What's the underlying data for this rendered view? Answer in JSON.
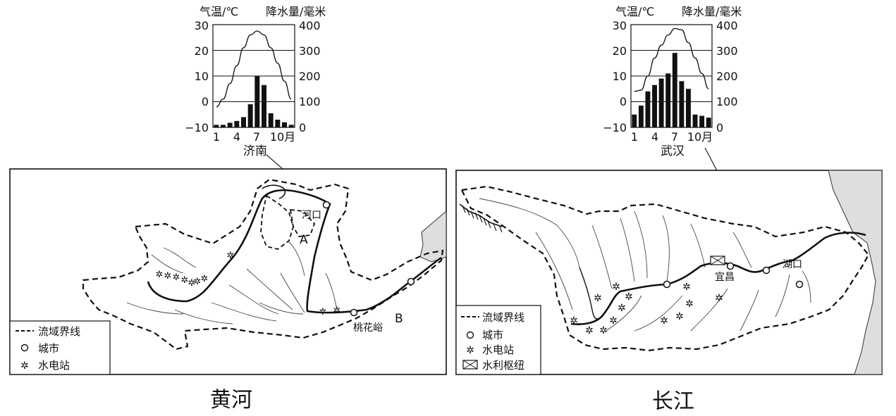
{
  "charts": [
    {
      "city": "济南",
      "temp_label": "气温/℃",
      "precip_label": "降水量/毫米",
      "temp_ticks": [
        "30",
        "20",
        "10",
        "0",
        "−10"
      ],
      "precip_ticks": [
        "400",
        "300",
        "200",
        "100",
        "0"
      ],
      "x_ticks": [
        "1",
        "4",
        "7",
        "10月"
      ]
    },
    {
      "city": "武汉",
      "temp_label": "气温/℃",
      "precip_label": "降水量/毫米",
      "temp_ticks": [
        "30",
        "20",
        "10",
        "0",
        "−10"
      ],
      "precip_ticks": [
        "400",
        "300",
        "200",
        "100",
        "0"
      ],
      "x_ticks": [
        "1",
        "4",
        "7",
        "10月"
      ]
    }
  ],
  "chart_data": [
    {
      "type": "bar",
      "title": "济南",
      "categories": [
        "1",
        "2",
        "3",
        "4",
        "5",
        "6",
        "7",
        "8",
        "9",
        "10",
        "11",
        "12"
      ],
      "series": [
        {
          "name": "降水量",
          "values": [
            10,
            10,
            18,
            25,
            40,
            90,
            200,
            165,
            55,
            30,
            20,
            10
          ],
          "axis": "right"
        },
        {
          "name": "气温",
          "values": [
            -2,
            1,
            7,
            14,
            21,
            26,
            27.5,
            26,
            21,
            15,
            8,
            1
          ],
          "axis": "left",
          "type": "line"
        }
      ],
      "ylabel_left": "气温/℃",
      "ylim_left": [
        -10,
        30
      ],
      "ylabel_right": "降水量/毫米",
      "ylim_right": [
        0,
        400
      ]
    },
    {
      "type": "bar",
      "title": "武汉",
      "categories": [
        "1",
        "2",
        "3",
        "4",
        "5",
        "6",
        "7",
        "8",
        "9",
        "10",
        "11",
        "12"
      ],
      "series": [
        {
          "name": "降水量",
          "values": [
            50,
            85,
            140,
            165,
            190,
            210,
            290,
            180,
            150,
            50,
            45,
            38
          ],
          "axis": "right"
        },
        {
          "name": "气温",
          "values": [
            4,
            4.5,
            10,
            17,
            22,
            26,
            28.5,
            28,
            23,
            17,
            11,
            5
          ],
          "axis": "left",
          "type": "line"
        }
      ],
      "ylabel_left": "气温/℃",
      "ylim_left": [
        -10,
        30
      ],
      "ylabel_right": "降水量/毫米",
      "ylim_right": [
        0,
        400
      ]
    }
  ],
  "maps": [
    {
      "river_title": "黄河",
      "place_labels": {
        "hekou": "河口",
        "taohuayu": "桃花峪",
        "A": "A",
        "B": "B"
      },
      "legend": [
        {
          "symbol": "dashed-line",
          "label": "流域界线"
        },
        {
          "symbol": "circle",
          "label": "城市"
        },
        {
          "symbol": "star",
          "label": "水电站"
        }
      ]
    },
    {
      "river_title": "长江",
      "place_labels": {
        "yichang": "宜昌",
        "hukou": "湖口"
      },
      "legend": [
        {
          "symbol": "dashed-line",
          "label": "流域界线"
        },
        {
          "symbol": "circle",
          "label": "城市"
        },
        {
          "symbol": "star",
          "label": "水电站"
        },
        {
          "symbol": "box-x",
          "label": "水利枢纽"
        }
      ]
    }
  ]
}
